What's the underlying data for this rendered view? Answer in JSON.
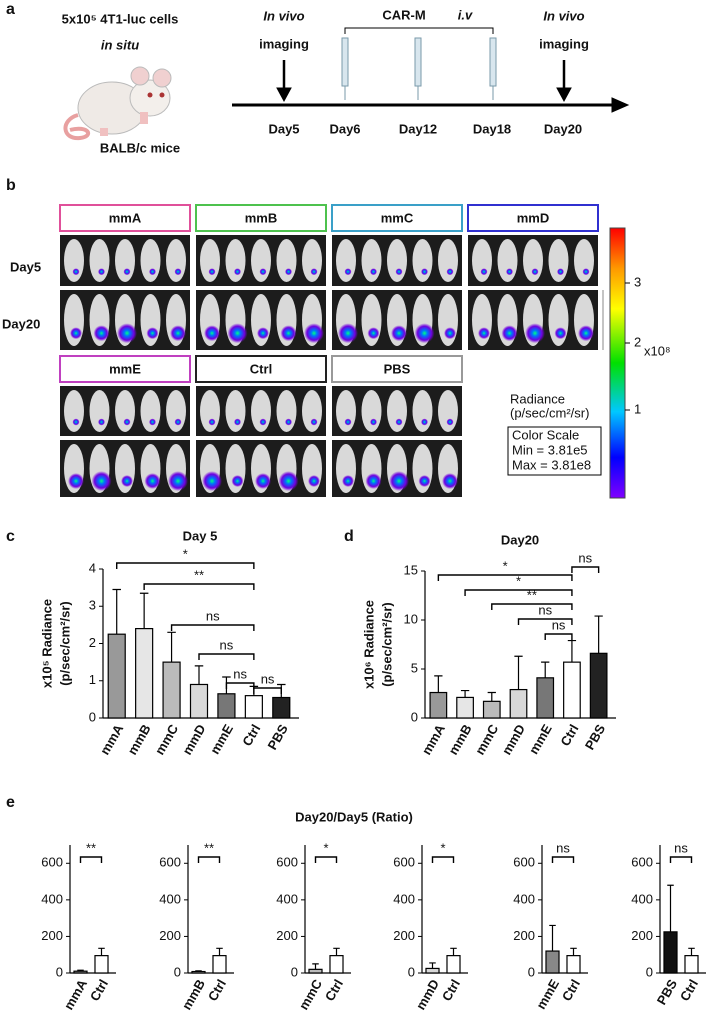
{
  "panel_labels": [
    "a",
    "b",
    "c",
    "d",
    "e"
  ],
  "panel_a": {
    "cells": "5x10⁵ 4T1-luc cells",
    "site": "in situ",
    "mice": "BALB/c mice",
    "imaging_left": [
      "In vivo",
      "imaging"
    ],
    "treatment": "CAR-M",
    "route": "i.v",
    "imaging_right": [
      "In vivo",
      "imaging"
    ],
    "days": [
      "Day5",
      "Day6",
      "Day12",
      "Day18",
      "Day20"
    ]
  },
  "panel_b": {
    "groups": [
      "mmA",
      "mmB",
      "mmC",
      "mmD",
      "mmE",
      "Ctrl",
      "PBS"
    ],
    "group_colors": [
      "#e0509a",
      "#4ec24e",
      "#3aa0c8",
      "#3030d0",
      "#c040c0",
      "#222222",
      "#999999"
    ],
    "rows": [
      "Day5",
      "Day20"
    ],
    "colorbar": {
      "ticks": [
        "1",
        "2",
        "3"
      ],
      "unit": "x10⁸",
      "title": "Radiance",
      "units": "(p/sec/cm²/sr)",
      "scale_title": "Color Scale",
      "min": "Min = 3.81e5",
      "max": "Max = 3.81e8"
    }
  },
  "panel_e_title": "Day20/Day5 (Ratio)",
  "chart_data": [
    {
      "type": "bar",
      "title": "Day 5",
      "ylabel": "x10⁵ Radiance",
      "ylabel_units": "(p/sec/cm²/sr)",
      "categories": [
        "mmA",
        "mmB",
        "mmC",
        "mmD",
        "mmE",
        "Ctrl",
        "PBS"
      ],
      "values": [
        2.25,
        2.4,
        1.5,
        0.9,
        0.65,
        0.6,
        0.55
      ],
      "errors": [
        1.2,
        0.95,
        0.8,
        0.5,
        0.45,
        0.25,
        0.35
      ],
      "colors": [
        "#999999",
        "#e6e6e6",
        "#bbbbbb",
        "#d8d8d8",
        "#777777",
        "#ffffff",
        "#222222"
      ],
      "ylim": [
        0,
        4
      ],
      "yticks": [
        0,
        1,
        2,
        3,
        4
      ],
      "comparisons": [
        {
          "from": "mmA",
          "to": "Ctrl",
          "label": "*"
        },
        {
          "from": "mmB",
          "to": "Ctrl",
          "label": "**"
        },
        {
          "from": "mmC",
          "to": "Ctrl",
          "label": "ns"
        },
        {
          "from": "mmD",
          "to": "Ctrl",
          "label": "ns"
        },
        {
          "from": "mmE",
          "to": "Ctrl",
          "label": "ns"
        },
        {
          "from": "Ctrl",
          "to": "PBS",
          "label": "ns"
        }
      ]
    },
    {
      "type": "bar",
      "title": "Day20",
      "ylabel": "x10⁶ Radiance",
      "ylabel_units": "(p/sec/cm²/sr)",
      "categories": [
        "mmA",
        "mmB",
        "mmC",
        "mmD",
        "mmE",
        "Ctrl",
        "PBS"
      ],
      "values": [
        2.6,
        2.1,
        1.7,
        2.9,
        4.1,
        5.7,
        6.6
      ],
      "errors": [
        1.7,
        0.7,
        0.9,
        3.4,
        1.6,
        2.2,
        3.8
      ],
      "colors": [
        "#999999",
        "#e6e6e6",
        "#bbbbbb",
        "#d8d8d8",
        "#777777",
        "#ffffff",
        "#222222"
      ],
      "ylim": [
        0,
        15
      ],
      "yticks": [
        0,
        5,
        10,
        15
      ],
      "comparisons": [
        {
          "from": "mmA",
          "to": "Ctrl",
          "label": "*"
        },
        {
          "from": "mmB",
          "to": "Ctrl",
          "label": "*"
        },
        {
          "from": "mmC",
          "to": "Ctrl",
          "label": "**"
        },
        {
          "from": "mmD",
          "to": "Ctrl",
          "label": "ns"
        },
        {
          "from": "mmE",
          "to": "Ctrl",
          "label": "ns"
        },
        {
          "from": "Ctrl",
          "to": "PBS",
          "label": "ns"
        }
      ]
    },
    {
      "type": "bar",
      "categories": [
        "mmA",
        "Ctrl"
      ],
      "values": [
        10,
        95
      ],
      "errors": [
        5,
        40
      ],
      "colors": [
        "#999999",
        "#ffffff"
      ],
      "ylim": [
        0,
        700
      ],
      "yticks": [
        0,
        200,
        400,
        600
      ],
      "comparisons": [
        {
          "from": "mmA",
          "to": "Ctrl",
          "label": "**"
        }
      ]
    },
    {
      "type": "bar",
      "categories": [
        "mmB",
        "Ctrl"
      ],
      "values": [
        8,
        95
      ],
      "errors": [
        4,
        40
      ],
      "colors": [
        "#e6e6e6",
        "#ffffff"
      ],
      "ylim": [
        0,
        700
      ],
      "yticks": [
        0,
        200,
        400,
        600
      ],
      "comparisons": [
        {
          "from": "mmB",
          "to": "Ctrl",
          "label": "**"
        }
      ]
    },
    {
      "type": "bar",
      "categories": [
        "mmC",
        "Ctrl"
      ],
      "values": [
        20,
        95
      ],
      "errors": [
        30,
        40
      ],
      "colors": [
        "#bbbbbb",
        "#ffffff"
      ],
      "ylim": [
        0,
        700
      ],
      "yticks": [
        0,
        200,
        400,
        600
      ],
      "comparisons": [
        {
          "from": "mmC",
          "to": "Ctrl",
          "label": "*"
        }
      ]
    },
    {
      "type": "bar",
      "categories": [
        "mmD",
        "Ctrl"
      ],
      "values": [
        25,
        95
      ],
      "errors": [
        30,
        40
      ],
      "colors": [
        "#d8d8d8",
        "#ffffff"
      ],
      "ylim": [
        0,
        700
      ],
      "yticks": [
        0,
        200,
        400,
        600
      ],
      "comparisons": [
        {
          "from": "mmD",
          "to": "Ctrl",
          "label": "*"
        }
      ]
    },
    {
      "type": "bar",
      "categories": [
        "mmE",
        "Ctrl"
      ],
      "values": [
        120,
        95
      ],
      "errors": [
        140,
        40
      ],
      "colors": [
        "#888888",
        "#ffffff"
      ],
      "ylim": [
        0,
        700
      ],
      "yticks": [
        0,
        200,
        400,
        600
      ],
      "comparisons": [
        {
          "from": "mmE",
          "to": "Ctrl",
          "label": "ns"
        }
      ]
    },
    {
      "type": "bar",
      "categories": [
        "PBS",
        "Ctrl"
      ],
      "values": [
        225,
        95
      ],
      "errors": [
        255,
        40
      ],
      "colors": [
        "#111111",
        "#ffffff"
      ],
      "ylim": [
        0,
        700
      ],
      "yticks": [
        0,
        200,
        400,
        600
      ],
      "comparisons": [
        {
          "from": "PBS",
          "to": "Ctrl",
          "label": "ns"
        }
      ]
    }
  ]
}
